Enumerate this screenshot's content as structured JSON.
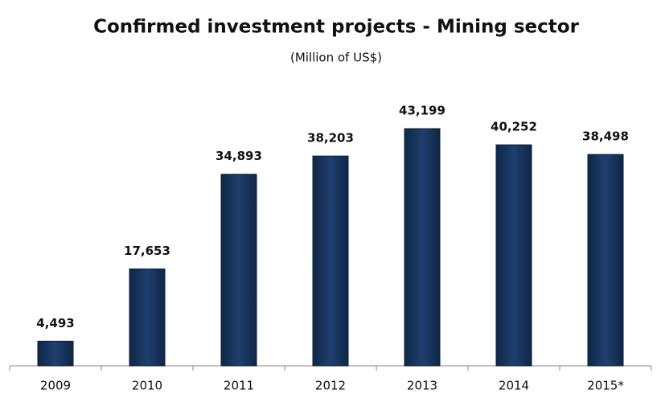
{
  "chart_data": {
    "type": "bar",
    "title": "Confirmed investment projects - Mining sector",
    "subtitle": "(Million of US$)",
    "categories": [
      "2009",
      "2010",
      "2011",
      "2012",
      "2013",
      "2014",
      "2015*"
    ],
    "values": [
      4493,
      17653,
      34893,
      38203,
      43199,
      40252,
      38498
    ],
    "value_labels": [
      "4,493",
      "17,653",
      "34,893",
      "38,203",
      "43,199",
      "40,252",
      "38,498"
    ],
    "color": "#1f3f6e"
  }
}
